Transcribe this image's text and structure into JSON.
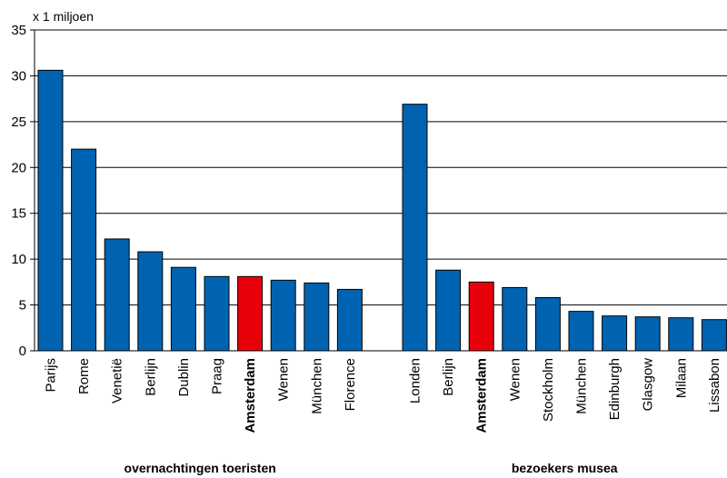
{
  "chart_data": {
    "type": "bar",
    "unit_label": "x 1 miljoen",
    "ylim": [
      0,
      35
    ],
    "yticks": [
      0,
      5,
      10,
      15,
      20,
      25,
      30,
      35
    ],
    "grid": true,
    "colors": {
      "default": "#0063b1",
      "highlight": "#e8000b"
    },
    "groups": [
      {
        "label": "overnachtingen toeristen",
        "categories": [
          "Parijs",
          "Rome",
          "Venetië",
          "Berlijn",
          "Dublin",
          "Praag",
          "Amsterdam",
          "Wenen",
          "München",
          "Florence"
        ],
        "values": [
          30.6,
          22.0,
          12.2,
          10.8,
          9.1,
          8.1,
          8.1,
          7.7,
          7.4,
          6.7
        ],
        "highlight": "Amsterdam"
      },
      {
        "label": "bezoekers musea",
        "categories": [
          "Londen",
          "Berlijn",
          "Amsterdam",
          "Wenen",
          "Stockholm",
          "München",
          "Edinburgh",
          "Glasgow",
          "Milaan",
          "Lissabon"
        ],
        "values": [
          26.9,
          8.8,
          7.5,
          6.9,
          5.8,
          4.3,
          3.8,
          3.7,
          3.6,
          3.4
        ],
        "highlight": "Amsterdam"
      }
    ]
  }
}
